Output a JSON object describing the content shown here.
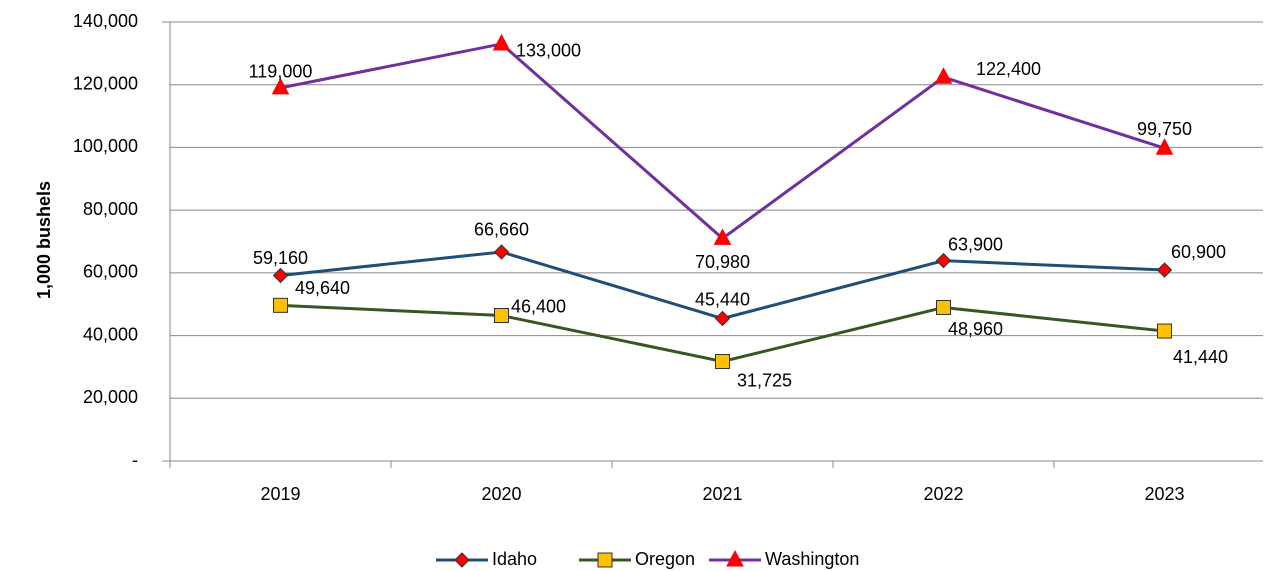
{
  "chart_data": {
    "type": "line",
    "y_axis_label": "1,000 bushels",
    "categories": [
      "2019",
      "2020",
      "2021",
      "2022",
      "2023"
    ],
    "series": [
      {
        "name": "Idaho",
        "color": "#1f4e79",
        "marker": "diamond",
        "marker_color": "#ff0000",
        "values": [
          59160,
          66660,
          45440,
          63900,
          60900
        ],
        "value_labels": [
          "59,160",
          "66,660",
          "45,440",
          "63,900",
          "60,900"
        ]
      },
      {
        "name": "Oregon",
        "color": "#375623",
        "marker": "square",
        "marker_color": "#ffc000",
        "values": [
          49640,
          46400,
          31725,
          48960,
          41440
        ],
        "value_labels": [
          "49,640",
          "46,400",
          "31,725",
          "48,960",
          "41,440"
        ]
      },
      {
        "name": "Washington",
        "color": "#7030a0",
        "marker": "triangle",
        "marker_color": "#ff0000",
        "values": [
          119000,
          133000,
          70980,
          122400,
          99750
        ],
        "value_labels": [
          "119,000",
          "133,000",
          "70,980",
          "122,400",
          "99,750"
        ]
      }
    ],
    "ylim": [
      0,
      140000
    ],
    "yticks": [
      {
        "value": 0,
        "label": "-"
      },
      {
        "value": 20000,
        "label": "20,000"
      },
      {
        "value": 40000,
        "label": "40,000"
      },
      {
        "value": 60000,
        "label": "60,000"
      },
      {
        "value": 80000,
        "label": "80,000"
      },
      {
        "value": 100000,
        "label": "100,000"
      },
      {
        "value": 120000,
        "label": "120,000"
      },
      {
        "value": 140000,
        "label": "140,000"
      }
    ],
    "grid": true,
    "legend": "bottom"
  }
}
